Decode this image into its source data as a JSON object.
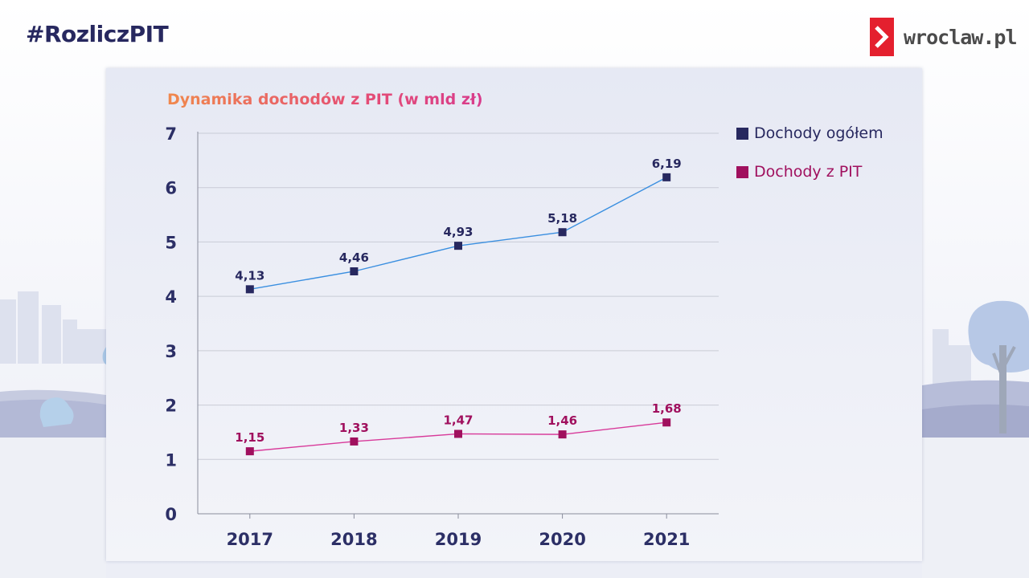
{
  "header": {
    "hashtag": "#RozliczPIT",
    "logo_text": "wroclaw.pl"
  },
  "colors": {
    "brand_red": "#e4202e",
    "series_total": "#27285f",
    "series_pit": "#a0105e",
    "line_total": "#3a8fe0",
    "line_pit": "#d83a9a"
  },
  "chart_data": {
    "type": "line",
    "title": "Dynamika dochodów z PIT (w mld zł)",
    "xlabel": "",
    "ylabel": "",
    "ylim": [
      0,
      7
    ],
    "yticks": [
      "0",
      "1",
      "2",
      "3",
      "4",
      "5",
      "6",
      "7"
    ],
    "categories": [
      "2017",
      "2018",
      "2019",
      "2020",
      "2021"
    ],
    "grid": true,
    "legend_position": "top-right",
    "series": [
      {
        "name": "Dochody ogółem",
        "values": [
          4.13,
          4.46,
          4.93,
          5.18,
          6.19
        ],
        "labels": [
          "4,13",
          "4,46",
          "4,93",
          "5,18",
          "6,19"
        ],
        "color": "#27285f"
      },
      {
        "name": "Dochody z PIT",
        "values": [
          1.15,
          1.33,
          1.47,
          1.46,
          1.68
        ],
        "labels": [
          "1,15",
          "1,33",
          "1,47",
          "1,46",
          "1,68"
        ],
        "color": "#a0105e"
      }
    ]
  }
}
